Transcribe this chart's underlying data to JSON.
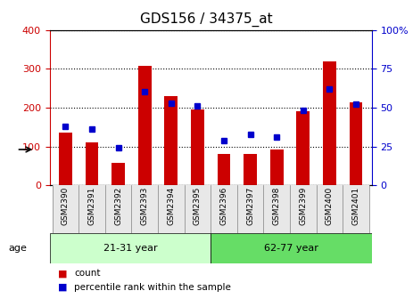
{
  "title": "GDS156 / 34375_at",
  "samples": [
    "GSM2390",
    "GSM2391",
    "GSM2392",
    "GSM2393",
    "GSM2394",
    "GSM2395",
    "GSM2396",
    "GSM2397",
    "GSM2398",
    "GSM2399",
    "GSM2400",
    "GSM2401"
  ],
  "counts": [
    135,
    110,
    58,
    307,
    230,
    195,
    82,
    80,
    93,
    190,
    320,
    213
  ],
  "percentiles": [
    38,
    36,
    24,
    60,
    53,
    51,
    29,
    33,
    31,
    48,
    62,
    52
  ],
  "groups": [
    {
      "label": "21-31 year",
      "start": 0,
      "end": 6,
      "color": "#90EE90"
    },
    {
      "label": "62-77 year",
      "start": 6,
      "end": 12,
      "color": "#00CC44"
    }
  ],
  "bar_color": "#CC0000",
  "dot_color": "#0000CC",
  "ylim_left": [
    0,
    400
  ],
  "ylim_right": [
    0,
    100
  ],
  "yticks_left": [
    0,
    100,
    200,
    300,
    400
  ],
  "yticks_right": [
    0,
    25,
    50,
    75,
    100
  ],
  "yticklabels_right": [
    "0",
    "25",
    "50",
    "75",
    "100%"
  ],
  "grid_color": "#000000",
  "bg_color": "#ffffff",
  "left_axis_color": "#CC0000",
  "right_axis_color": "#0000CC",
  "age_label": "age",
  "legend_count": "count",
  "legend_percentile": "percentile rank within the sample",
  "group_bg_light": "#ccffcc",
  "group_bg_dark": "#44dd44"
}
